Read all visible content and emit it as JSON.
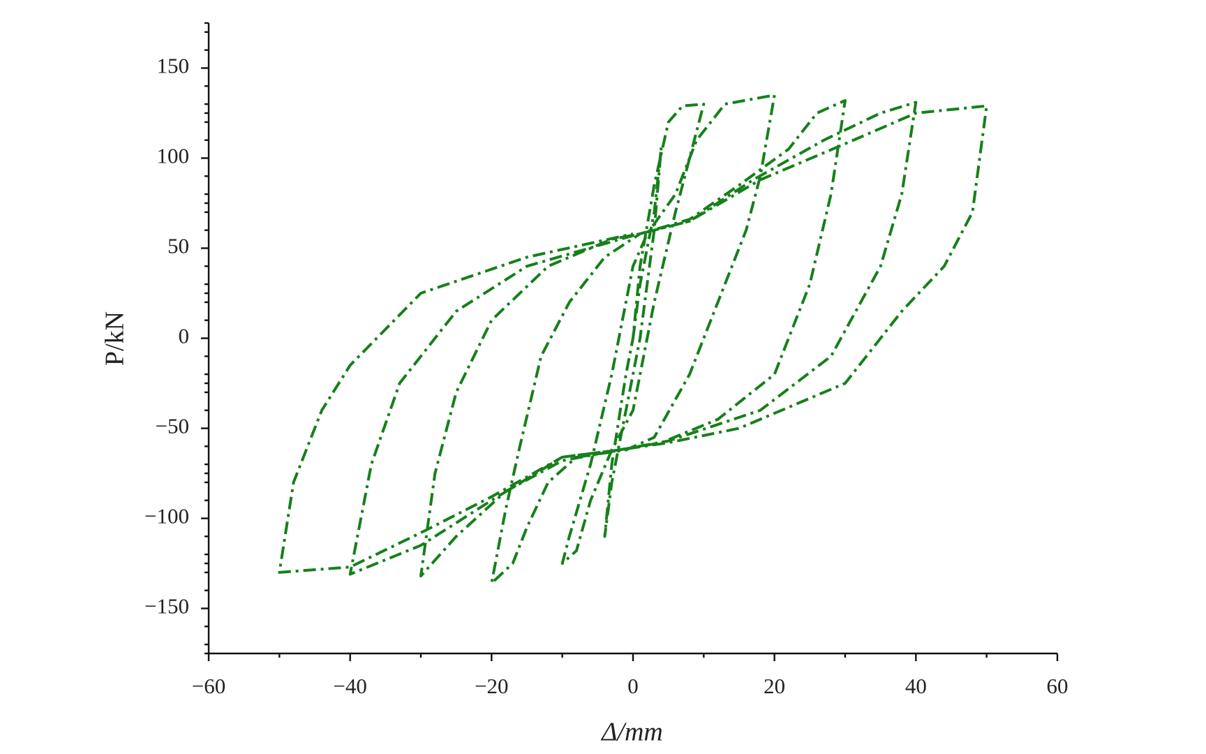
{
  "chart_data": {
    "type": "line",
    "xlabel": "Δ/mm",
    "ylabel": "P/kN",
    "color": "#16801a",
    "xlim": [
      -60,
      60
    ],
    "ylim": [
      -175,
      175
    ],
    "xticks": [
      {
        "value": -60,
        "label": "−60"
      },
      {
        "value": -40,
        "label": "−40"
      },
      {
        "value": -20,
        "label": "−20"
      },
      0,
      20,
      40,
      60
    ],
    "yticks": [
      {
        "value": -150,
        "label": "−150"
      },
      {
        "value": -100,
        "label": "−100"
      },
      {
        "value": -50,
        "label": "−50"
      },
      0,
      50,
      100,
      150
    ],
    "x": [
      0,
      1,
      3,
      4,
      3,
      1,
      -1,
      -3,
      -4,
      -3,
      -1,
      0,
      1,
      3,
      5,
      7,
      10,
      8,
      6,
      3,
      0,
      -3,
      -6,
      -8,
      -10,
      -9,
      -6,
      -3,
      0,
      2,
      6,
      9,
      13,
      20,
      18,
      16,
      12,
      8,
      3,
      -1,
      -8,
      -12,
      -15,
      -17,
      -20,
      -18,
      -16,
      -13,
      -9,
      -4,
      1,
      8,
      15,
      22,
      26,
      30,
      28,
      25,
      20,
      12,
      4,
      -2,
      -10,
      -18,
      -25,
      -30,
      -28,
      -25,
      -20,
      -12,
      -3,
      1,
      8,
      17,
      27,
      35,
      40,
      38,
      35,
      28,
      18,
      5,
      -2,
      -10,
      -20,
      -30,
      -40,
      -37,
      -33,
      -25,
      -15,
      0,
      8,
      18,
      30,
      40,
      50,
      48,
      44,
      38,
      30,
      15,
      5,
      -2,
      -10,
      -20,
      -30,
      -40,
      -50,
      -48,
      -44,
      -40,
      -30,
      -15,
      0
    ],
    "values": [
      0,
      30,
      70,
      106,
      60,
      0,
      -40,
      -80,
      -110,
      -70,
      -20,
      0,
      40,
      85,
      120,
      129,
      130,
      100,
      70,
      20,
      -40,
      -62,
      -90,
      -118,
      -125,
      -110,
      -70,
      -20,
      40,
      58,
      80,
      110,
      130,
      135,
      90,
      60,
      20,
      -20,
      -55,
      -62,
      -66,
      -80,
      -105,
      -125,
      -136,
      -95,
      -60,
      -10,
      20,
      45,
      58,
      66,
      85,
      105,
      125,
      132,
      80,
      30,
      -20,
      -45,
      -58,
      -62,
      -68,
      -85,
      -110,
      -132,
      -75,
      -30,
      10,
      40,
      55,
      58,
      65,
      88,
      110,
      125,
      131,
      80,
      40,
      -10,
      -40,
      -57,
      -62,
      -66,
      -90,
      -115,
      -131,
      -70,
      -25,
      15,
      40,
      57,
      65,
      88,
      108,
      125,
      129,
      70,
      40,
      15,
      -25,
      -50,
      -58,
      -62,
      -66,
      -88,
      -108,
      -127,
      -130,
      -80,
      -40,
      -15,
      25,
      45,
      58
    ]
  }
}
